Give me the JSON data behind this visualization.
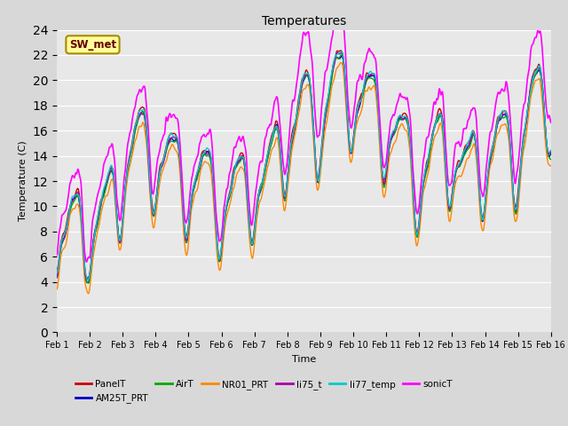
{
  "title": "Temperatures",
  "xlabel": "Time",
  "ylabel": "Temperature (C)",
  "ylim": [
    0,
    24
  ],
  "yticks": [
    0,
    2,
    4,
    6,
    8,
    10,
    12,
    14,
    16,
    18,
    20,
    22,
    24
  ],
  "x_labels": [
    "Feb 1",
    "Feb 2",
    "Feb 3",
    "Feb 4",
    "Feb 5",
    "Feb 6",
    "Feb 7",
    "Feb 8",
    "Feb 9",
    "Feb 10",
    "Feb 11",
    "Feb 12",
    "Feb 13",
    "Feb 14",
    "Feb 15",
    "Feb 16"
  ],
  "series": {
    "PanelT": {
      "color": "#cc0000",
      "lw": 1.0
    },
    "AM25T_PRT": {
      "color": "#0000cc",
      "lw": 1.0
    },
    "AirT": {
      "color": "#00aa00",
      "lw": 1.0
    },
    "NR01_PRT": {
      "color": "#ff8800",
      "lw": 1.0
    },
    "li75_t": {
      "color": "#aa00aa",
      "lw": 1.0
    },
    "li77_temp": {
      "color": "#00cccc",
      "lw": 1.0
    },
    "sonicT": {
      "color": "#ff00ff",
      "lw": 1.2
    }
  },
  "legend_box": {
    "label": "SW_met",
    "facecolor": "#ffff99",
    "edgecolor": "#aa8800",
    "textcolor": "#660000"
  },
  "bg_color": "#d8d8d8",
  "plot_bg": "#e8e8e8",
  "n_points": 2880,
  "days": 15
}
